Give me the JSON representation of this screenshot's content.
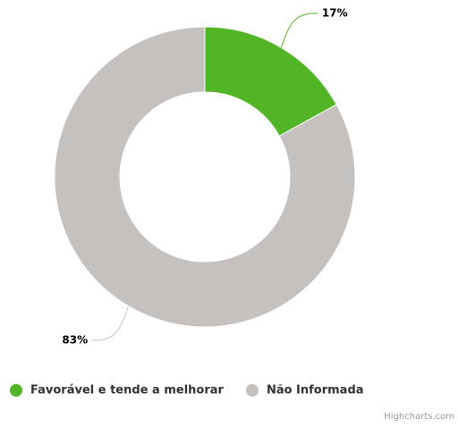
{
  "chart_data": {
    "type": "pie",
    "categories": [
      "Favorável e tende a melhorar",
      "Não Informada"
    ],
    "values": [
      17,
      83
    ],
    "value_labels": [
      "17%",
      "83%"
    ],
    "colors": [
      "#52b526",
      "#c4c1bf"
    ],
    "donut": true,
    "legend": "bottom",
    "credits": "Highcharts.com"
  }
}
